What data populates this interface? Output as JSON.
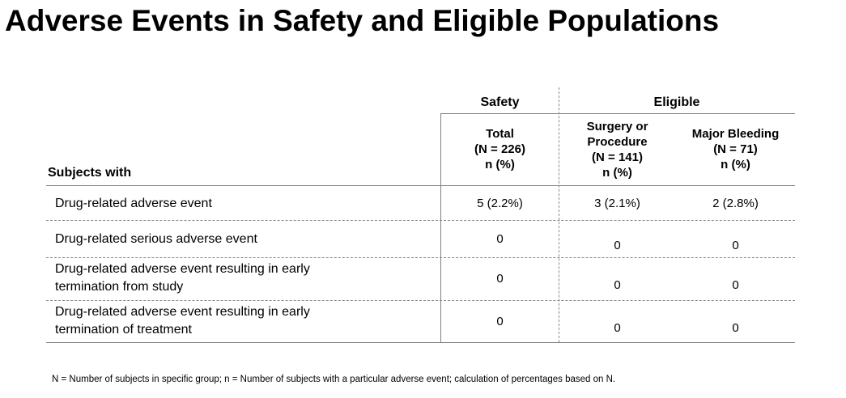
{
  "title": "Adverse Events in Safety and Eligible Populations",
  "groups": {
    "safety": "Safety",
    "eligible": "Eligible"
  },
  "columns": [
    {
      "lines": [
        "Total",
        "(N = 226)",
        "n (%)"
      ]
    },
    {
      "lines": [
        "Surgery or",
        "Procedure",
        "(N = 141)",
        "n (%)"
      ]
    },
    {
      "lines": [
        "Major Bleeding",
        "(N = 71)",
        "n (%)"
      ]
    }
  ],
  "row_header": "Subjects with",
  "rows": [
    {
      "label_lines": [
        "Drug-related adverse event"
      ],
      "values": [
        "5 (2.2%)",
        "3 (2.1%)",
        "2 (2.8%)"
      ]
    },
    {
      "label_lines": [
        "Drug-related serious adverse event"
      ],
      "values": [
        "0",
        "0",
        "0"
      ]
    },
    {
      "label_lines": [
        "Drug-related adverse event resulting in early",
        "termination from study"
      ],
      "values": [
        "0",
        "0",
        "0"
      ]
    },
    {
      "label_lines": [
        "Drug-related adverse event resulting in early",
        "termination of treatment"
      ],
      "values": [
        "0",
        "0",
        "0"
      ]
    }
  ],
  "footnote": "N = Number of subjects in specific group; n = Number of subjects with a particular adverse event; calculation of percentages based on N."
}
